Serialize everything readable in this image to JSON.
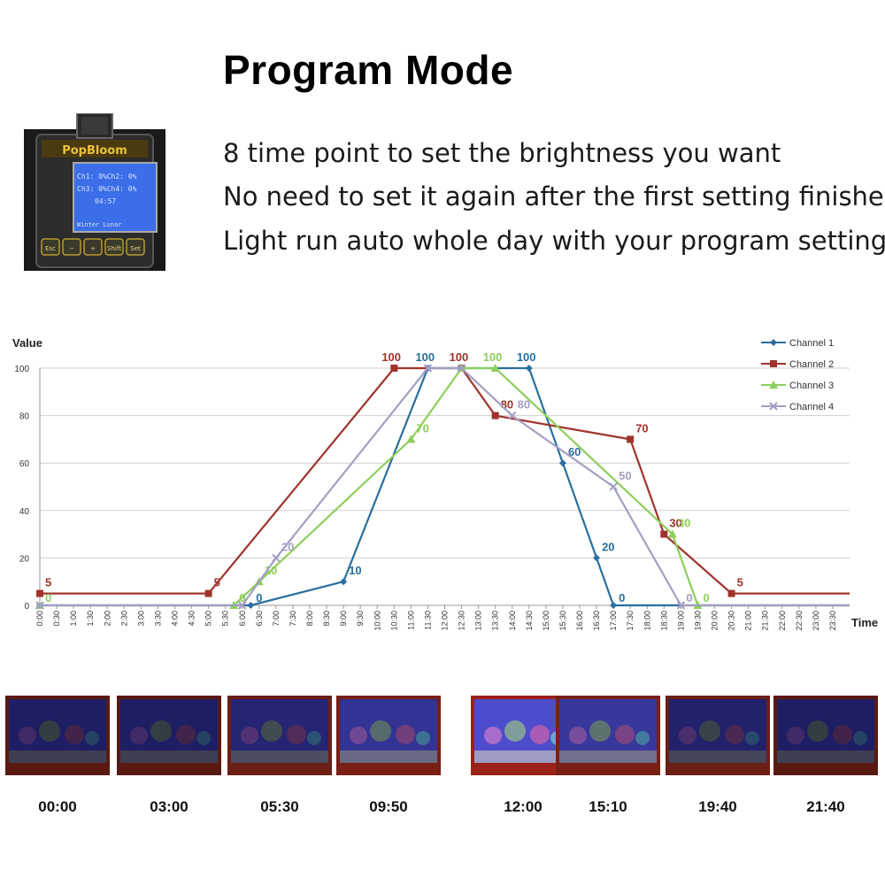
{
  "title": "Program Mode",
  "features": [
    "8 time point to set the brightness you want",
    "No need to set it again after the first setting finished",
    "Light run auto whole day with your program setting"
  ],
  "device": {
    "brand": "PopBloom",
    "screen_lines": [
      "Ch1: 0%Ch2: 0%",
      "Ch3: 0%Ch4: 0%",
      "04:57",
      "Winter       Lunar"
    ],
    "buttons": [
      "Esc",
      "−",
      "+",
      "Shift",
      "Set"
    ]
  },
  "chart_data": {
    "type": "line",
    "ylabel": "Value",
    "xlabel": "Time",
    "ylim": [
      0,
      100
    ],
    "yticks": [
      0,
      20,
      40,
      60,
      80,
      100
    ],
    "xticks": [
      "0:00",
      "0:30",
      "1:00",
      "1:30",
      "2:00",
      "2:30",
      "3:00",
      "3:30",
      "4:00",
      "4:30",
      "5:00",
      "5:30",
      "6:00",
      "6:30",
      "7:00",
      "7:30",
      "8:00",
      "8:30",
      "9:00",
      "9:30",
      "10:00",
      "10:30",
      "11:00",
      "11:30",
      "12:00",
      "12:30",
      "13:00",
      "13:30",
      "14:00",
      "14:30",
      "15:00",
      "15:30",
      "16:00",
      "16:30",
      "17:00",
      "17:30",
      "18:00",
      "18:30",
      "19:00",
      "19:30",
      "20:00",
      "20:30",
      "21:00",
      "21:30",
      "22:00",
      "22:30",
      "23:00",
      "23:30"
    ],
    "legend_position": "top-right",
    "series": [
      {
        "name": "Channel 1",
        "color": "#2a6f9e",
        "marker": "diamond",
        "points": [
          [
            "0:00",
            0
          ],
          [
            "6:15",
            0
          ],
          [
            "9:00",
            10
          ],
          [
            "11:30",
            100
          ],
          [
            "14:30",
            100
          ],
          [
            "15:30",
            60
          ],
          [
            "16:30",
            20
          ],
          [
            "17:00",
            0
          ],
          [
            "24:00",
            0
          ]
        ],
        "labels": [
          [
            "6:15",
            "0"
          ],
          [
            "9:00",
            "10"
          ],
          [
            "11:30",
            "100"
          ],
          [
            "14:30",
            "100"
          ],
          [
            "15:30",
            "60"
          ],
          [
            "16:30",
            "20"
          ],
          [
            "17:00",
            "0"
          ]
        ]
      },
      {
        "name": "Channel 2",
        "color": "#a0332b",
        "marker": "square",
        "points": [
          [
            "0:00",
            5
          ],
          [
            "5:00",
            5
          ],
          [
            "10:30",
            100
          ],
          [
            "12:30",
            100
          ],
          [
            "13:30",
            80
          ],
          [
            "17:30",
            70
          ],
          [
            "18:30",
            30
          ],
          [
            "20:30",
            5
          ],
          [
            "24:00",
            5
          ]
        ],
        "labels": [
          [
            "0:00",
            "5"
          ],
          [
            "5:00",
            "5"
          ],
          [
            "10:30",
            "100"
          ],
          [
            "12:30",
            "100"
          ],
          [
            "13:30",
            "80"
          ],
          [
            "17:30",
            "70"
          ],
          [
            "18:30",
            "30"
          ],
          [
            "20:30",
            "5"
          ]
        ]
      },
      {
        "name": "Channel 3",
        "color": "#8ccf5a",
        "marker": "triangle",
        "points": [
          [
            "0:00",
            0
          ],
          [
            "5:45",
            0
          ],
          [
            "6:30",
            10
          ],
          [
            "11:00",
            70
          ],
          [
            "12:30",
            100
          ],
          [
            "13:30",
            100
          ],
          [
            "18:45",
            30
          ],
          [
            "19:30",
            0
          ],
          [
            "24:00",
            0
          ]
        ],
        "labels": [
          [
            "0:00",
            "0"
          ],
          [
            "5:45",
            "0"
          ],
          [
            "6:30",
            "10"
          ],
          [
            "11:00",
            "70"
          ],
          [
            "13:30",
            "100"
          ],
          [
            "18:45",
            "30"
          ],
          [
            "19:30",
            "0"
          ]
        ]
      },
      {
        "name": "Channel 4",
        "color": "#a39fc4",
        "marker": "x",
        "points": [
          [
            "0:00",
            0
          ],
          [
            "6:00",
            0
          ],
          [
            "7:00",
            20
          ],
          [
            "11:30",
            100
          ],
          [
            "12:30",
            100
          ],
          [
            "14:00",
            80
          ],
          [
            "17:00",
            50
          ],
          [
            "19:00",
            0
          ],
          [
            "24:00",
            0
          ]
        ],
        "labels": [
          [
            "7:00",
            "20"
          ],
          [
            "14:00",
            "80"
          ],
          [
            "17:00",
            "50"
          ],
          [
            "19:00",
            "0"
          ]
        ]
      }
    ]
  },
  "tanks": {
    "times": [
      "00:00",
      "03:00",
      "05:30",
      "09:50",
      "12:00",
      "15:10",
      "19:40",
      "21:40"
    ],
    "brightness": [
      0.25,
      0.25,
      0.35,
      0.55,
      0.9,
      0.6,
      0.3,
      0.25
    ],
    "frame_colors": [
      "#5a1a12",
      "#5a1a12",
      "#6b1f15",
      "#7a1f16",
      "#9b2218",
      "#7a1f16",
      "#6b1f15",
      "#5a1a12"
    ]
  }
}
